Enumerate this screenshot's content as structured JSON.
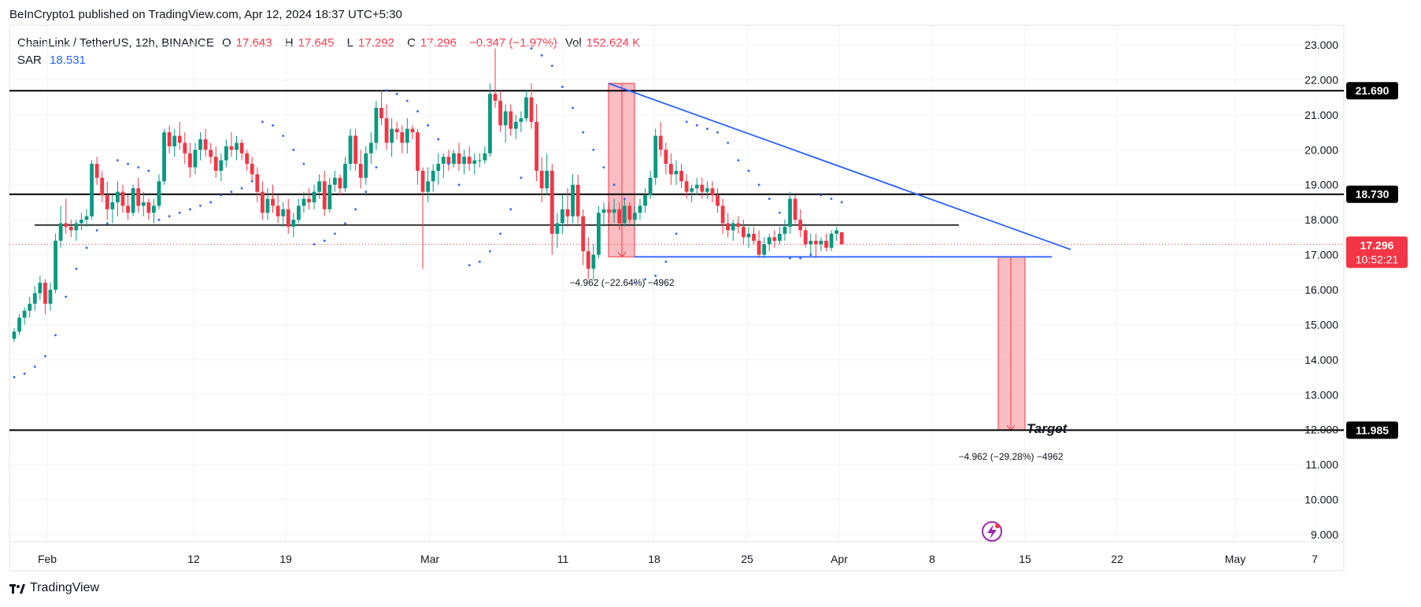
{
  "header": {
    "published": "BeInCrypto1 published on TradingView.com, Apr 12, 2024 18:37 UTC+5:30"
  },
  "legend": {
    "symbol": "ChainLink / TetherUS, 12h, BINANCE",
    "o_label": "O",
    "o_value": "17.643",
    "h_label": "H",
    "h_value": "17.645",
    "l_label": "L",
    "l_value": "17.292",
    "c_label": "C",
    "c_value": "17.296",
    "change": "−0.347 (−1.97%)",
    "vol_label": "Vol",
    "vol_value": "152.624 K",
    "sar_label": "SAR",
    "sar_value": "18.531"
  },
  "footer": {
    "brand": "TradingView"
  },
  "colors": {
    "up": "#089981",
    "down": "#f23645",
    "trend": "#2962ff",
    "sar": "#2962ff",
    "level": "#000000",
    "target_zone": "#f7a7ad"
  },
  "chart_data": {
    "type": "candlestick",
    "title": "ChainLink / TetherUS, 12h, BINANCE",
    "ylim": [
      9.0,
      23.0
    ],
    "y_ticks": [
      "23.000",
      "22.000",
      "21.000",
      "20.000",
      "19.000",
      "18.000",
      "17.000",
      "16.000",
      "15.000",
      "14.000",
      "13.000",
      "12.000",
      "11.000",
      "10.000",
      "9.000"
    ],
    "x_ticks": [
      "Feb",
      "12",
      "19",
      "Mar",
      "11",
      "18",
      "25",
      "Apr",
      "8",
      "15",
      "22",
      "May",
      "7"
    ],
    "levels": [
      {
        "value": 21.69,
        "label": "21.690"
      },
      {
        "value": 18.73,
        "label": "18.730"
      },
      {
        "value": 11.985,
        "label": "11.985"
      }
    ],
    "price_label": {
      "value": 17.296,
      "label": "17.296",
      "timer": "10:52:21"
    },
    "annotations": {
      "measure1": "−4.962 (−22.64%) −4962",
      "measure2": "−4.962 (−29.28%) −4962",
      "target": "Target"
    },
    "candles": [
      [
        14.6,
        14.9,
        14.5,
        14.8
      ],
      [
        14.8,
        15.3,
        14.7,
        15.2
      ],
      [
        15.2,
        15.5,
        15.0,
        15.4
      ],
      [
        15.4,
        15.8,
        15.2,
        15.6
      ],
      [
        15.6,
        16.1,
        15.4,
        15.9
      ],
      [
        15.9,
        16.4,
        15.7,
        16.2
      ],
      [
        16.2,
        16.3,
        15.3,
        15.6
      ],
      [
        15.6,
        16.2,
        15.4,
        16.0
      ],
      [
        16.0,
        17.6,
        15.9,
        17.4
      ],
      [
        17.4,
        18.4,
        17.2,
        17.9
      ],
      [
        17.9,
        18.6,
        17.6,
        17.8
      ],
      [
        17.8,
        18.0,
        17.5,
        17.7
      ],
      [
        17.7,
        18.0,
        17.4,
        17.9
      ],
      [
        17.9,
        18.2,
        17.7,
        18.0
      ],
      [
        18.0,
        18.3,
        17.8,
        18.1
      ],
      [
        18.1,
        19.7,
        18.0,
        19.6
      ],
      [
        19.6,
        19.8,
        19.0,
        19.2
      ],
      [
        19.2,
        19.4,
        18.5,
        18.7
      ],
      [
        18.7,
        19.1,
        18.0,
        18.3
      ],
      [
        18.3,
        18.7,
        17.9,
        18.5
      ],
      [
        18.5,
        19.1,
        18.1,
        18.8
      ],
      [
        18.8,
        19.0,
        18.2,
        18.4
      ],
      [
        18.4,
        18.7,
        18.0,
        18.2
      ],
      [
        18.2,
        19.0,
        18.1,
        18.9
      ],
      [
        18.9,
        19.2,
        18.2,
        18.4
      ],
      [
        18.4,
        18.8,
        18.1,
        18.5
      ],
      [
        18.5,
        18.6,
        18.0,
        18.2
      ],
      [
        18.2,
        18.6,
        17.9,
        18.4
      ],
      [
        18.4,
        19.3,
        18.3,
        19.1
      ],
      [
        19.1,
        20.6,
        19.0,
        20.5
      ],
      [
        20.5,
        20.7,
        19.9,
        20.1
      ],
      [
        20.1,
        20.6,
        19.8,
        20.4
      ],
      [
        20.4,
        20.8,
        20.0,
        20.2
      ],
      [
        20.2,
        20.5,
        19.6,
        19.9
      ],
      [
        19.9,
        20.2,
        19.2,
        19.5
      ],
      [
        19.5,
        20.2,
        19.3,
        20.0
      ],
      [
        20.0,
        20.5,
        19.7,
        20.3
      ],
      [
        20.3,
        20.6,
        19.8,
        20.0
      ],
      [
        20.0,
        20.2,
        19.6,
        19.8
      ],
      [
        19.8,
        20.1,
        19.2,
        19.4
      ],
      [
        19.4,
        19.9,
        19.1,
        19.7
      ],
      [
        19.7,
        20.3,
        19.5,
        20.1
      ],
      [
        20.1,
        20.5,
        19.8,
        20.0
      ],
      [
        20.0,
        20.4,
        19.7,
        20.2
      ],
      [
        20.2,
        20.3,
        19.7,
        19.9
      ],
      [
        19.9,
        20.0,
        19.4,
        19.6
      ],
      [
        19.6,
        19.8,
        19.1,
        19.3
      ],
      [
        19.3,
        19.5,
        18.5,
        18.8
      ],
      [
        18.8,
        19.1,
        18.0,
        18.2
      ],
      [
        18.2,
        18.9,
        18.0,
        18.6
      ],
      [
        18.6,
        19.0,
        18.2,
        18.4
      ],
      [
        18.4,
        18.7,
        17.9,
        18.1
      ],
      [
        18.1,
        18.5,
        17.8,
        18.3
      ],
      [
        18.3,
        18.6,
        17.6,
        17.8
      ],
      [
        17.8,
        18.2,
        17.5,
        18.0
      ],
      [
        18.0,
        18.6,
        17.9,
        18.4
      ],
      [
        18.4,
        18.8,
        18.2,
        18.6
      ],
      [
        18.6,
        18.9,
        18.3,
        18.5
      ],
      [
        18.5,
        19.0,
        18.3,
        18.8
      ],
      [
        18.8,
        19.3,
        18.6,
        19.1
      ],
      [
        19.1,
        19.4,
        18.1,
        18.3
      ],
      [
        18.3,
        19.2,
        18.2,
        19.0
      ],
      [
        19.0,
        19.4,
        18.8,
        19.2
      ],
      [
        19.2,
        19.3,
        18.7,
        18.9
      ],
      [
        18.9,
        19.8,
        18.8,
        19.6
      ],
      [
        19.6,
        20.6,
        19.4,
        20.4
      ],
      [
        20.4,
        20.6,
        19.4,
        19.6
      ],
      [
        19.6,
        20.0,
        18.9,
        19.2
      ],
      [
        19.2,
        20.1,
        19.0,
        19.9
      ],
      [
        19.9,
        20.5,
        19.6,
        20.2
      ],
      [
        20.2,
        21.4,
        20.0,
        21.2
      ],
      [
        21.2,
        21.7,
        20.7,
        20.9
      ],
      [
        20.9,
        21.3,
        20.0,
        20.2
      ],
      [
        20.2,
        20.9,
        19.8,
        20.6
      ],
      [
        20.6,
        20.8,
        20.3,
        20.5
      ],
      [
        20.5,
        20.7,
        19.9,
        20.2
      ],
      [
        20.2,
        20.9,
        19.9,
        20.6
      ],
      [
        20.6,
        20.7,
        20.3,
        20.5
      ],
      [
        20.5,
        20.6,
        19.0,
        19.4
      ],
      [
        19.4,
        19.5,
        16.6,
        18.8
      ],
      [
        18.8,
        19.5,
        18.5,
        19.1
      ],
      [
        19.1,
        19.6,
        18.8,
        19.4
      ],
      [
        19.4,
        19.9,
        19.0,
        19.6
      ],
      [
        19.6,
        19.9,
        19.2,
        19.8
      ],
      [
        19.8,
        20.0,
        19.4,
        19.6
      ],
      [
        19.6,
        20.0,
        19.5,
        19.9
      ],
      [
        19.9,
        20.2,
        19.4,
        19.6
      ],
      [
        19.6,
        20.0,
        19.3,
        19.8
      ],
      [
        19.8,
        20.1,
        19.4,
        19.6
      ],
      [
        19.6,
        19.9,
        19.3,
        19.7
      ],
      [
        19.7,
        19.9,
        19.5,
        19.7
      ],
      [
        19.7,
        20.1,
        19.6,
        19.9
      ],
      [
        19.9,
        21.9,
        19.8,
        21.6
      ],
      [
        21.6,
        22.9,
        21.2,
        21.4
      ],
      [
        21.4,
        21.7,
        20.5,
        20.7
      ],
      [
        20.7,
        21.3,
        20.2,
        21.1
      ],
      [
        21.1,
        21.3,
        20.4,
        20.6
      ],
      [
        20.6,
        21.0,
        20.3,
        20.8
      ],
      [
        20.8,
        21.1,
        20.5,
        20.9
      ],
      [
        20.9,
        21.7,
        20.8,
        21.5
      ],
      [
        21.5,
        21.9,
        20.6,
        20.8
      ],
      [
        20.8,
        21.3,
        19.1,
        19.4
      ],
      [
        19.4,
        19.8,
        18.5,
        18.9
      ],
      [
        18.9,
        19.9,
        18.7,
        19.4
      ],
      [
        19.4,
        19.6,
        17.0,
        17.6
      ],
      [
        17.6,
        18.2,
        17.2,
        17.9
      ],
      [
        17.9,
        18.7,
        17.6,
        18.3
      ],
      [
        18.3,
        18.9,
        17.8,
        18.1
      ],
      [
        18.1,
        19.3,
        17.9,
        19.0
      ],
      [
        19.0,
        19.3,
        17.9,
        18.1
      ],
      [
        18.1,
        18.3,
        16.7,
        17.1
      ],
      [
        17.1,
        17.5,
        16.3,
        16.6
      ],
      [
        16.6,
        17.3,
        16.3,
        17.0
      ],
      [
        17.0,
        18.4,
        16.9,
        18.2
      ],
      [
        18.2,
        18.5,
        17.8,
        18.3
      ],
      [
        18.3,
        18.5,
        17.9,
        18.2
      ],
      [
        18.2,
        18.6,
        17.9,
        18.3
      ],
      [
        18.3,
        18.5,
        17.7,
        17.9
      ],
      [
        17.9,
        18.6,
        17.8,
        18.4
      ],
      [
        18.4,
        18.5,
        17.9,
        18.0
      ],
      [
        18.0,
        18.4,
        17.8,
        18.2
      ],
      [
        18.2,
        18.6,
        18.0,
        18.4
      ],
      [
        18.4,
        18.9,
        18.2,
        18.7
      ],
      [
        18.7,
        19.4,
        18.6,
        19.2
      ],
      [
        19.2,
        20.6,
        19.0,
        20.4
      ],
      [
        20.4,
        20.8,
        19.8,
        20.0
      ],
      [
        20.0,
        20.2,
        19.3,
        19.6
      ],
      [
        19.6,
        19.9,
        19.0,
        19.3
      ],
      [
        19.3,
        19.7,
        19.0,
        19.4
      ],
      [
        19.4,
        19.6,
        18.9,
        19.1
      ],
      [
        19.1,
        19.3,
        18.6,
        18.8
      ],
      [
        18.8,
        19.0,
        18.5,
        18.9
      ],
      [
        18.9,
        19.2,
        18.7,
        19.0
      ],
      [
        19.0,
        19.2,
        18.6,
        18.8
      ],
      [
        18.8,
        19.1,
        18.6,
        18.9
      ],
      [
        18.9,
        19.1,
        18.5,
        18.7
      ],
      [
        18.7,
        18.9,
        18.2,
        18.4
      ],
      [
        18.4,
        18.6,
        17.6,
        17.9
      ],
      [
        17.9,
        18.2,
        17.5,
        17.7
      ],
      [
        17.7,
        18.0,
        17.4,
        17.9
      ],
      [
        17.9,
        18.1,
        17.6,
        17.8
      ],
      [
        17.8,
        18.0,
        17.3,
        17.5
      ],
      [
        17.5,
        17.8,
        17.2,
        17.6
      ],
      [
        17.6,
        17.8,
        17.3,
        17.4
      ],
      [
        17.4,
        17.7,
        16.9,
        17.0
      ],
      [
        17.0,
        17.5,
        16.9,
        17.3
      ],
      [
        17.3,
        17.6,
        17.1,
        17.5
      ],
      [
        17.5,
        17.7,
        17.2,
        17.4
      ],
      [
        17.4,
        17.8,
        17.3,
        17.6
      ],
      [
        17.6,
        18.0,
        17.4,
        17.8
      ],
      [
        17.8,
        18.8,
        17.6,
        18.6
      ],
      [
        18.6,
        18.7,
        17.9,
        18.0
      ],
      [
        18.0,
        18.3,
        17.5,
        17.7
      ],
      [
        17.7,
        17.8,
        17.2,
        17.3
      ],
      [
        17.3,
        17.6,
        17.0,
        17.4
      ],
      [
        17.4,
        17.6,
        16.9,
        17.3
      ],
      [
        17.3,
        17.5,
        17.1,
        17.4
      ],
      [
        17.4,
        17.6,
        17.1,
        17.2
      ],
      [
        17.2,
        17.7,
        17.1,
        17.6
      ],
      [
        17.6,
        17.8,
        17.4,
        17.7
      ],
      [
        17.643,
        17.645,
        17.292,
        17.296
      ]
    ],
    "sar": [
      [
        0,
        13.5
      ],
      [
        2,
        13.6
      ],
      [
        4,
        13.8
      ],
      [
        6,
        14.1
      ],
      [
        8,
        14.7
      ],
      [
        10,
        15.8
      ],
      [
        12,
        16.6
      ],
      [
        14,
        17.2
      ],
      [
        16,
        17.7
      ],
      [
        18,
        17.9
      ],
      [
        20,
        19.7
      ],
      [
        22,
        19.6
      ],
      [
        24,
        19.5
      ],
      [
        26,
        19.4
      ],
      [
        28,
        18.0
      ],
      [
        30,
        18.1
      ],
      [
        32,
        18.2
      ],
      [
        34,
        18.3
      ],
      [
        36,
        18.4
      ],
      [
        38,
        18.5
      ],
      [
        40,
        18.7
      ],
      [
        42,
        18.8
      ],
      [
        44,
        18.9
      ],
      [
        46,
        19.1
      ],
      [
        48,
        20.8
      ],
      [
        50,
        20.7
      ],
      [
        52,
        20.4
      ],
      [
        54,
        20.0
      ],
      [
        56,
        19.6
      ],
      [
        58,
        17.3
      ],
      [
        60,
        17.4
      ],
      [
        62,
        17.6
      ],
      [
        64,
        17.9
      ],
      [
        66,
        18.3
      ],
      [
        68,
        18.8
      ],
      [
        70,
        19.5
      ],
      [
        72,
        21.7
      ],
      [
        74,
        21.6
      ],
      [
        76,
        21.4
      ],
      [
        78,
        21.1
      ],
      [
        80,
        20.7
      ],
      [
        82,
        20.3
      ],
      [
        84,
        19.6
      ],
      [
        86,
        19.0
      ],
      [
        88,
        16.7
      ],
      [
        90,
        16.8
      ],
      [
        92,
        17.1
      ],
      [
        94,
        17.6
      ],
      [
        96,
        18.3
      ],
      [
        98,
        19.2
      ],
      [
        100,
        22.9
      ],
      [
        102,
        22.7
      ],
      [
        104,
        22.4
      ],
      [
        106,
        21.8
      ],
      [
        108,
        21.2
      ],
      [
        110,
        20.5
      ],
      [
        112,
        20.0
      ],
      [
        114,
        19.5
      ],
      [
        116,
        19.0
      ],
      [
        118,
        18.6
      ],
      [
        120,
        16.2
      ],
      [
        122,
        16.3
      ],
      [
        124,
        16.4
      ],
      [
        126,
        16.8
      ],
      [
        128,
        17.6
      ],
      [
        130,
        20.8
      ],
      [
        132,
        20.7
      ],
      [
        134,
        20.6
      ],
      [
        136,
        20.5
      ],
      [
        138,
        20.2
      ],
      [
        140,
        19.7
      ],
      [
        142,
        19.4
      ],
      [
        144,
        19.0
      ],
      [
        146,
        18.6
      ],
      [
        148,
        18.2
      ],
      [
        150,
        16.9
      ],
      [
        152,
        16.9
      ],
      [
        154,
        17.0
      ],
      [
        156,
        18.7
      ],
      [
        158,
        18.6
      ],
      [
        160,
        18.5
      ]
    ]
  }
}
